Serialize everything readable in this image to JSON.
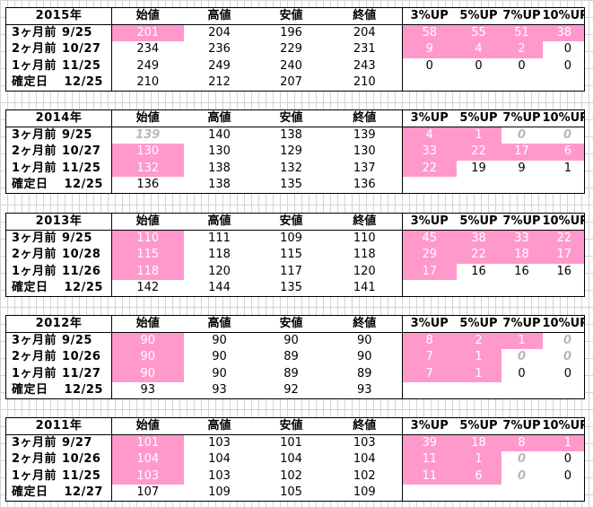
{
  "columns": [
    "始値",
    "高値",
    "安値",
    "終値",
    "3%UP",
    "5%UP",
    "7%UP",
    "10%UP"
  ],
  "blocks": [
    {
      "year": "2015年",
      "rows": [
        {
          "label": "3ヶ月前",
          "date": "9/25",
          "values": [
            "201",
            "204",
            "196",
            "204"
          ],
          "up": [
            "58",
            "55",
            "51",
            "38"
          ],
          "pink": [
            true,
            false,
            false,
            false
          ],
          "upPink": [
            true,
            true,
            true,
            true
          ],
          "muted": [
            false,
            false,
            false,
            false
          ]
        },
        {
          "label": "2ヶ月前",
          "date": "10/27",
          "values": [
            "234",
            "236",
            "229",
            "231"
          ],
          "up": [
            "9",
            "4",
            "2",
            "0"
          ],
          "pink": [
            false,
            false,
            false,
            false
          ],
          "upPink": [
            true,
            true,
            true,
            false
          ],
          "muted": [
            false,
            false,
            false,
            false
          ]
        },
        {
          "label": "1ヶ月前",
          "date": "11/25",
          "values": [
            "249",
            "249",
            "240",
            "243"
          ],
          "up": [
            "0",
            "0",
            "0",
            "0"
          ],
          "pink": [
            false,
            false,
            false,
            false
          ],
          "upPink": [
            false,
            false,
            false,
            false
          ],
          "muted": [
            false,
            false,
            false,
            false
          ]
        }
      ],
      "final": {
        "label": "確定日",
        "date": "12/25",
        "values": [
          "210",
          "212",
          "207",
          "210"
        ]
      }
    },
    {
      "year": "2014年",
      "rows": [
        {
          "label": "3ヶ月前",
          "date": "9/25",
          "values": [
            "139",
            "140",
            "138",
            "139"
          ],
          "up": [
            "4",
            "1",
            "0",
            "0"
          ],
          "pink": [
            false,
            false,
            false,
            false
          ],
          "upPink": [
            true,
            true,
            false,
            false
          ],
          "muted": [
            false,
            false,
            true,
            true
          ],
          "firstMuted": true
        },
        {
          "label": "2ヶ月前",
          "date": "10/27",
          "values": [
            "130",
            "130",
            "129",
            "130"
          ],
          "up": [
            "33",
            "22",
            "17",
            "6"
          ],
          "pink": [
            true,
            false,
            false,
            false
          ],
          "upPink": [
            true,
            true,
            true,
            true
          ],
          "muted": [
            false,
            false,
            false,
            false
          ]
        },
        {
          "label": "1ヶ月前",
          "date": "11/25",
          "values": [
            "132",
            "138",
            "132",
            "137"
          ],
          "up": [
            "22",
            "19",
            "9",
            "1"
          ],
          "pink": [
            true,
            false,
            false,
            false
          ],
          "upPink": [
            true,
            false,
            false,
            false
          ],
          "muted": [
            false,
            false,
            false,
            false
          ]
        }
      ],
      "final": {
        "label": "確定日",
        "date": "12/25",
        "values": [
          "136",
          "138",
          "135",
          "136"
        ]
      }
    },
    {
      "year": "2013年",
      "rows": [
        {
          "label": "3ヶ月前",
          "date": "9/25",
          "values": [
            "110",
            "111",
            "109",
            "110"
          ],
          "up": [
            "45",
            "38",
            "33",
            "22"
          ],
          "pink": [
            true,
            false,
            false,
            false
          ],
          "upPink": [
            true,
            true,
            true,
            true
          ],
          "muted": [
            false,
            false,
            false,
            false
          ]
        },
        {
          "label": "2ヶ月前",
          "date": "10/28",
          "values": [
            "115",
            "118",
            "115",
            "118"
          ],
          "up": [
            "29",
            "22",
            "18",
            "17"
          ],
          "pink": [
            true,
            false,
            false,
            false
          ],
          "upPink": [
            true,
            true,
            true,
            true
          ],
          "muted": [
            false,
            false,
            false,
            false
          ]
        },
        {
          "label": "1ヶ月前",
          "date": "11/26",
          "values": [
            "118",
            "120",
            "117",
            "120"
          ],
          "up": [
            "17",
            "16",
            "16",
            "16"
          ],
          "pink": [
            true,
            false,
            false,
            false
          ],
          "upPink": [
            true,
            false,
            false,
            false
          ],
          "muted": [
            false,
            false,
            false,
            false
          ]
        }
      ],
      "final": {
        "label": "確定日",
        "date": "12/25",
        "values": [
          "142",
          "144",
          "135",
          "141"
        ]
      }
    },
    {
      "year": "2012年",
      "rows": [
        {
          "label": "3ヶ月前",
          "date": "9/25",
          "values": [
            "90",
            "90",
            "90",
            "90"
          ],
          "up": [
            "8",
            "2",
            "1",
            "0"
          ],
          "pink": [
            true,
            false,
            false,
            false
          ],
          "upPink": [
            true,
            true,
            true,
            false
          ],
          "muted": [
            false,
            false,
            false,
            true
          ]
        },
        {
          "label": "2ヶ月前",
          "date": "10/26",
          "values": [
            "90",
            "90",
            "89",
            "90"
          ],
          "up": [
            "7",
            "1",
            "0",
            "0"
          ],
          "pink": [
            true,
            false,
            false,
            false
          ],
          "upPink": [
            true,
            true,
            false,
            false
          ],
          "muted": [
            false,
            false,
            true,
            true
          ]
        },
        {
          "label": "1ヶ月前",
          "date": "11/27",
          "values": [
            "90",
            "90",
            "89",
            "89"
          ],
          "up": [
            "7",
            "1",
            "0",
            "0"
          ],
          "pink": [
            true,
            false,
            false,
            false
          ],
          "upPink": [
            true,
            true,
            false,
            false
          ],
          "muted": [
            false,
            false,
            false,
            false
          ]
        }
      ],
      "final": {
        "label": "確定日",
        "date": "12/25",
        "values": [
          "93",
          "93",
          "92",
          "93"
        ]
      }
    },
    {
      "year": "2011年",
      "rows": [
        {
          "label": "3ヶ月前",
          "date": "9/27",
          "values": [
            "101",
            "103",
            "101",
            "103"
          ],
          "up": [
            "39",
            "18",
            "8",
            "1"
          ],
          "pink": [
            true,
            false,
            false,
            false
          ],
          "upPink": [
            true,
            true,
            true,
            true
          ],
          "muted": [
            false,
            false,
            false,
            false
          ]
        },
        {
          "label": "2ヶ月前",
          "date": "10/26",
          "values": [
            "104",
            "104",
            "104",
            "104"
          ],
          "up": [
            "11",
            "1",
            "0",
            "0"
          ],
          "pink": [
            true,
            false,
            false,
            false
          ],
          "upPink": [
            true,
            true,
            false,
            false
          ],
          "muted": [
            false,
            false,
            true,
            false
          ]
        },
        {
          "label": "1ヶ月前",
          "date": "11/25",
          "values": [
            "103",
            "103",
            "102",
            "102"
          ],
          "up": [
            "11",
            "6",
            "0",
            "0"
          ],
          "pink": [
            true,
            false,
            false,
            false
          ],
          "upPink": [
            true,
            true,
            false,
            false
          ],
          "muted": [
            false,
            false,
            true,
            false
          ]
        }
      ],
      "final": {
        "label": "確定日",
        "date": "12/27",
        "values": [
          "107",
          "109",
          "105",
          "109"
        ]
      }
    }
  ],
  "colors": {
    "pink": "#ff99cc",
    "grid": "#d4d4d4",
    "border": "#000000"
  }
}
